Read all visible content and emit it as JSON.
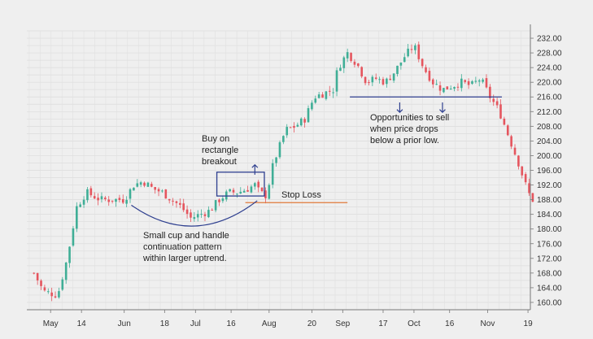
{
  "chart_data": {
    "type": "candlestick",
    "title": "",
    "xlabel": "",
    "ylabel": "",
    "ylim": [
      158,
      234
    ],
    "y_ticks": [
      "232.00",
      "228.00",
      "224.00",
      "220.00",
      "216.00",
      "212.00",
      "208.00",
      "204.00",
      "200.00",
      "196.00",
      "192.00",
      "188.00",
      "184.00",
      "180.00",
      "176.00",
      "172.00",
      "168.00",
      "164.00",
      "160.00"
    ],
    "y_tick_values": [
      232,
      228,
      224,
      220,
      216,
      212,
      208,
      204,
      200,
      196,
      192,
      188,
      184,
      180,
      176,
      172,
      168,
      164,
      160
    ],
    "x_ticks": [
      "May",
      "14",
      "Jun",
      "18",
      "Jul",
      "16",
      "Aug",
      "20",
      "Sep",
      "17",
      "Oct",
      "16",
      "Nov",
      "19"
    ],
    "x_tick_days": [
      1,
      14,
      32,
      49,
      62,
      77,
      93,
      111,
      124,
      141,
      154,
      169,
      185,
      202
    ],
    "x_range_days": [
      -9,
      203
    ],
    "grid": true,
    "up_color": "#3fae96",
    "down_color": "#e5555e",
    "accent_blue": "#2e3f8f",
    "accent_orange": "#e07a3a",
    "price_path": [
      [
        -6,
        168
      ],
      [
        -2,
        163
      ],
      [
        4,
        162
      ],
      [
        8,
        172
      ],
      [
        12,
        186
      ],
      [
        16,
        190
      ],
      [
        22,
        188
      ],
      [
        28,
        188
      ],
      [
        32,
        188
      ],
      [
        36,
        192
      ],
      [
        40,
        193
      ],
      [
        44,
        191
      ],
      [
        48,
        190
      ],
      [
        52,
        188
      ],
      [
        56,
        186
      ],
      [
        60,
        183
      ],
      [
        64,
        184
      ],
      [
        68,
        185
      ],
      [
        72,
        188
      ],
      [
        76,
        190
      ],
      [
        80,
        190
      ],
      [
        84,
        191
      ],
      [
        87,
        192
      ],
      [
        89,
        190
      ],
      [
        92,
        189
      ],
      [
        94,
        196
      ],
      [
        96,
        200
      ],
      [
        100,
        207
      ],
      [
        104,
        208
      ],
      [
        108,
        210
      ],
      [
        112,
        216
      ],
      [
        116,
        217
      ],
      [
        120,
        218
      ],
      [
        122,
        224
      ],
      [
        126,
        228
      ],
      [
        130,
        225
      ],
      [
        134,
        220
      ],
      [
        138,
        221
      ],
      [
        142,
        220
      ],
      [
        146,
        223
      ],
      [
        150,
        227
      ],
      [
        154,
        230
      ],
      [
        158,
        224
      ],
      [
        162,
        220
      ],
      [
        166,
        218
      ],
      [
        170,
        219
      ],
      [
        174,
        220
      ],
      [
        178,
        219
      ],
      [
        182,
        221
      ],
      [
        186,
        216
      ],
      [
        190,
        212
      ],
      [
        194,
        205
      ],
      [
        198,
        198
      ],
      [
        202,
        190
      ],
      [
        205,
        187
      ]
    ],
    "annotations": {
      "buy": "Buy on\nrectangle\nbreakout",
      "stop_loss": "Stop Loss",
      "sell": "Opportunities to sell\nwhen price drops\nbelow a prior low.",
      "cup": "Small cup and handle\ncontinuation pattern\nwithin larger uptrend."
    },
    "rectangle": {
      "day_range": [
        71,
        91
      ],
      "price_range": [
        189,
        195.5
      ]
    },
    "stop_loss_level": 187.2,
    "stop_loss_day_range": [
      83,
      126
    ],
    "prior_low_level": 216,
    "prior_low_day_range": [
      127,
      191
    ],
    "cup_day_range": [
      35,
      88
    ],
    "cup_bottom_price": 182.5,
    "up_arrow": {
      "day": 87,
      "price_range": [
        197.5,
        194.8
      ]
    },
    "down_arrows": [
      {
        "day": 148,
        "price_range": [
          214.5,
          211.8
        ]
      },
      {
        "day": 166,
        "price_range": [
          214.5,
          211.8
        ]
      }
    ]
  }
}
